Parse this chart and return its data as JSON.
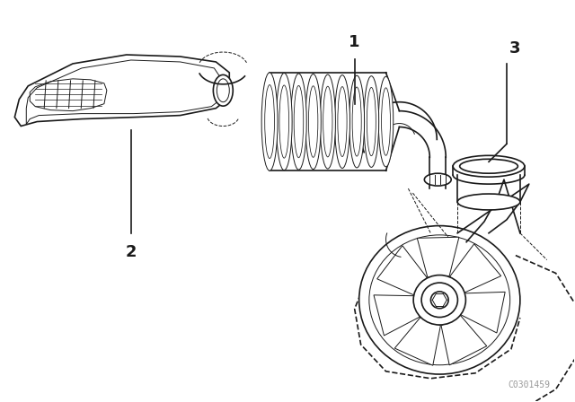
{
  "background_color": "#ffffff",
  "line_color": "#1a1a1a",
  "part_labels": [
    "1",
    "2",
    "3"
  ],
  "watermark": "C0301459",
  "fig_w": 6.4,
  "fig_h": 4.48,
  "dpi": 100
}
